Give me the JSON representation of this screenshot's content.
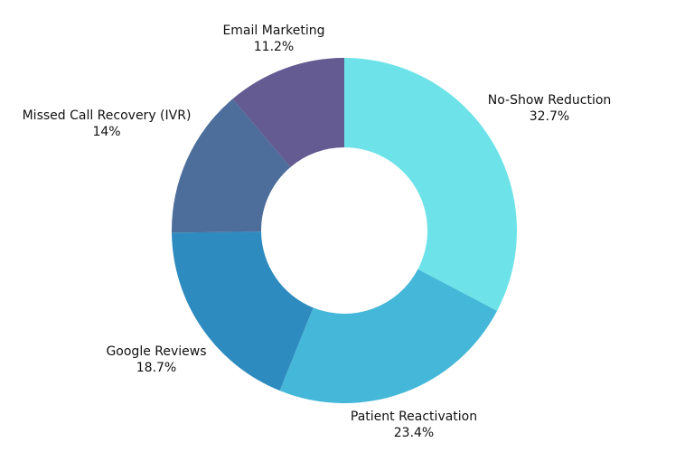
{
  "chart_data": {
    "type": "pie",
    "variant": "donut",
    "title": "",
    "legend": "none",
    "slices": [
      {
        "label": "No-Show Reduction",
        "value": 32.7,
        "value_label": "32.7%",
        "color": "#6de3e9"
      },
      {
        "label": "Patient Reactivation",
        "value": 23.4,
        "value_label": "23.4%",
        "color": "#45b7d8"
      },
      {
        "label": "Google Reviews",
        "value": 18.7,
        "value_label": "18.7%",
        "color": "#2e8bbf"
      },
      {
        "label": "Missed Call Recovery (IVR)",
        "value": 14,
        "value_label": "14%",
        "color": "#4d6d9b"
      },
      {
        "label": "Email Marketing",
        "value": 11.2,
        "value_label": "11.2%",
        "color": "#635b91"
      }
    ]
  }
}
